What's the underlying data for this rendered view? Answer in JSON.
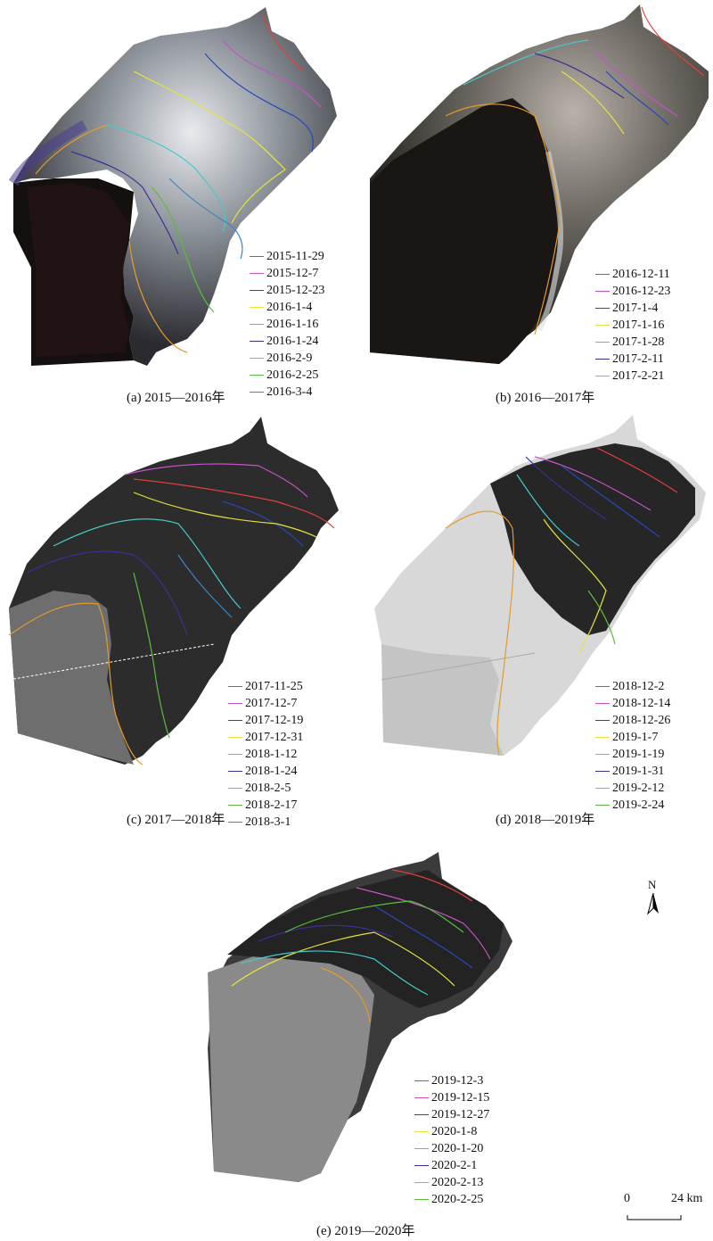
{
  "panels": [
    {
      "caption": "(a) 2015—2016年",
      "legend": [
        {
          "date": "2015-11-29",
          "color": "#e2403a"
        },
        {
          "date": "2015-12-7",
          "color": "#c553c8"
        },
        {
          "date": "2015-12-23",
          "color": "#2848b8"
        },
        {
          "date": "2016-1-4",
          "color": "#e6e33a"
        },
        {
          "date": "2016-1-16",
          "color": "#47c8c8"
        },
        {
          "date": "2016-1-24",
          "color": "#3a2f95"
        },
        {
          "date": "2016-2-9",
          "color": "#e59a2d"
        },
        {
          "date": "2016-2-25",
          "color": "#5bbd3b"
        },
        {
          "date": "2016-3-4",
          "color": "#3b86c6"
        }
      ]
    },
    {
      "caption": "(b) 2016—2017年",
      "legend": [
        {
          "date": "2016-12-11",
          "color": "#e2403a"
        },
        {
          "date": "2016-12-23",
          "color": "#c553c8"
        },
        {
          "date": "2017-1-4",
          "color": "#2848b8"
        },
        {
          "date": "2017-1-16",
          "color": "#e6e33a"
        },
        {
          "date": "2017-1-28",
          "color": "#47c8c8"
        },
        {
          "date": "2017-2-11",
          "color": "#3a2f95"
        },
        {
          "date": "2017-2-21",
          "color": "#e59a2d"
        }
      ]
    },
    {
      "caption": "(c) 2017—2018年",
      "legend": [
        {
          "date": "2017-11-25",
          "color": "#e2403a"
        },
        {
          "date": "2017-12-7",
          "color": "#c553c8"
        },
        {
          "date": "2017-12-19",
          "color": "#2848b8"
        },
        {
          "date": "2017-12-31",
          "color": "#e6e33a"
        },
        {
          "date": "2018-1-12",
          "color": "#47c8c8"
        },
        {
          "date": "2018-1-24",
          "color": "#3a2f95"
        },
        {
          "date": "2018-2-5",
          "color": "#e59a2d"
        },
        {
          "date": "2018-2-17",
          "color": "#5bbd3b"
        },
        {
          "date": "2018-3-1",
          "color": "#3b86c6"
        }
      ]
    },
    {
      "caption": "(d) 2018—2019年",
      "legend": [
        {
          "date": "2018-12-2",
          "color": "#e2403a"
        },
        {
          "date": "2018-12-14",
          "color": "#c553c8"
        },
        {
          "date": "2018-12-26",
          "color": "#2848b8"
        },
        {
          "date": "2019-1-7",
          "color": "#e6e33a"
        },
        {
          "date": "2019-1-19",
          "color": "#47c8c8"
        },
        {
          "date": "2019-1-31",
          "color": "#3a2f95"
        },
        {
          "date": "2019-2-12",
          "color": "#e59a2d"
        },
        {
          "date": "2019-2-24",
          "color": "#5bbd3b"
        }
      ]
    },
    {
      "caption": "(e) 2019—2020年",
      "legend": [
        {
          "date": "2019-12-3",
          "color": "#e2403a"
        },
        {
          "date": "2019-12-15",
          "color": "#c553c8"
        },
        {
          "date": "2019-12-27",
          "color": "#2848b8"
        },
        {
          "date": "2020-1-8",
          "color": "#e6e33a"
        },
        {
          "date": "2020-1-20",
          "color": "#47c8c8"
        },
        {
          "date": "2020-2-1",
          "color": "#3a2f95"
        },
        {
          "date": "2020-2-13",
          "color": "#e59a2d"
        },
        {
          "date": "2020-2-25",
          "color": "#5bbd3b"
        }
      ]
    }
  ],
  "north_arrow": {
    "label": "N"
  },
  "scale_bar": {
    "start_label": "0",
    "end_label": "24 km"
  }
}
